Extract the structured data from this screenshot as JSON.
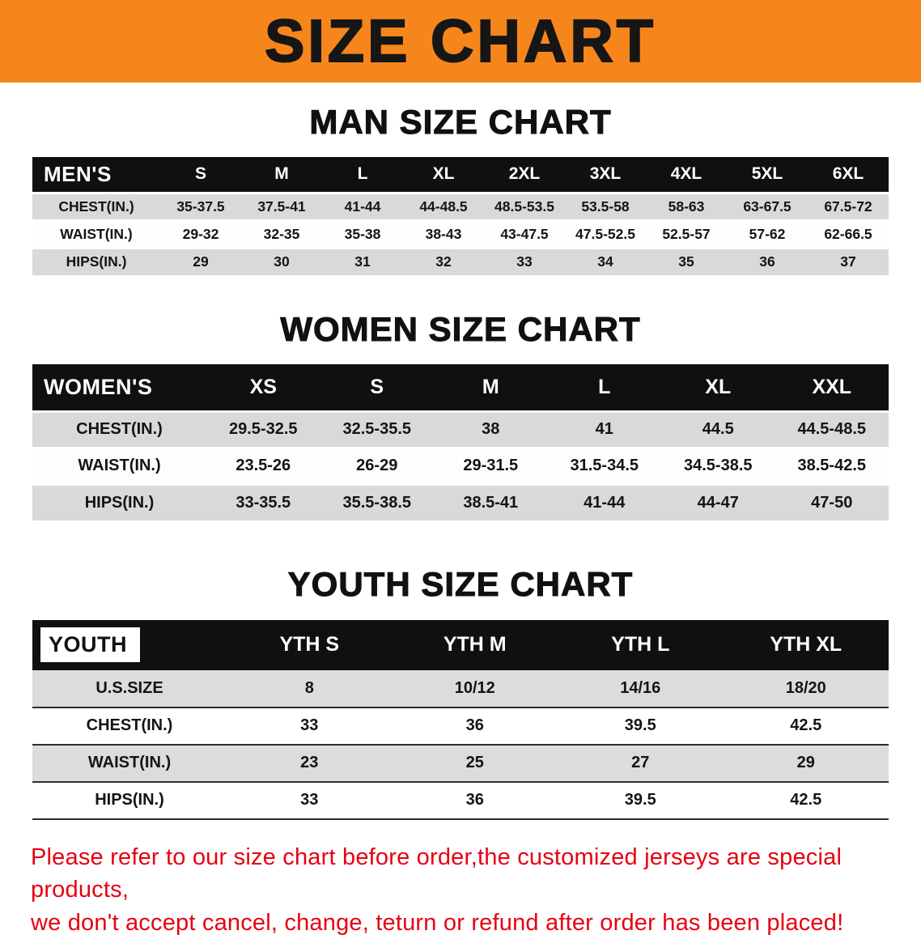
{
  "banner": {
    "title": "SIZE CHART",
    "background_color": "#f6861c",
    "text_color": "#161616"
  },
  "sections": [
    {
      "heading": "MAN SIZE CHART",
      "table": {
        "label": "MEN'S",
        "columns": [
          "S",
          "M",
          "L",
          "XL",
          "2XL",
          "3XL",
          "4XL",
          "5XL",
          "6XL"
        ],
        "rows": [
          {
            "label": "CHEST(IN.)",
            "values": [
              "35-37.5",
              "37.5-41",
              "41-44",
              "44-48.5",
              "48.5-53.5",
              "53.5-58",
              "58-63",
              "63-67.5",
              "67.5-72"
            ]
          },
          {
            "label": "WAIST(IN.)",
            "values": [
              "29-32",
              "32-35",
              "35-38",
              "38-43",
              "43-47.5",
              "47.5-52.5",
              "52.5-57",
              "57-62",
              "62-66.5"
            ]
          },
          {
            "label": "HIPS(IN.)",
            "values": [
              "29",
              "30",
              "31",
              "32",
              "33",
              "34",
              "35",
              "36",
              "37"
            ]
          }
        ]
      }
    },
    {
      "heading": "WOMEN SIZE CHART",
      "table": {
        "label": "WOMEN'S",
        "columns": [
          "XS",
          "S",
          "M",
          "L",
          "XL",
          "XXL"
        ],
        "rows": [
          {
            "label": "CHEST(IN.)",
            "values": [
              "29.5-32.5",
              "32.5-35.5",
              "38",
              "41",
              "44.5",
              "44.5-48.5"
            ]
          },
          {
            "label": "WAIST(IN.)",
            "values": [
              "23.5-26",
              "26-29",
              "29-31.5",
              "31.5-34.5",
              "34.5-38.5",
              "38.5-42.5"
            ]
          },
          {
            "label": "HIPS(IN.)",
            "values": [
              "33-35.5",
              "35.5-38.5",
              "38.5-41",
              "41-44",
              "44-47",
              "47-50"
            ]
          }
        ]
      }
    },
    {
      "heading": "YOUTH SIZE CHART",
      "table": {
        "label": "YOUTH",
        "columns": [
          "YTH S",
          "YTH M",
          "YTH L",
          "YTH XL"
        ],
        "rows": [
          {
            "label": "U.S.SIZE",
            "values": [
              "8",
              "10/12",
              "14/16",
              "18/20"
            ]
          },
          {
            "label": "CHEST(IN.)",
            "values": [
              "33",
              "36",
              "39.5",
              "42.5"
            ]
          },
          {
            "label": "WAIST(IN.)",
            "values": [
              "23",
              "25",
              "27",
              "29"
            ]
          },
          {
            "label": "HIPS(IN.)",
            "values": [
              "33",
              "36",
              "39.5",
              "42.5"
            ]
          }
        ]
      }
    }
  ],
  "disclaimer": {
    "lines": [
      "Please refer to our size chart before order,the customized jerseys are special products,",
      "we don't accept cancel, change, teturn or refund after order has been placed!"
    ],
    "text_color": "#e60012"
  },
  "colors": {
    "table_header_bg": "#101010",
    "shaded_row_bg": "#d9d9d9",
    "banner_bg": "#f6861c"
  }
}
